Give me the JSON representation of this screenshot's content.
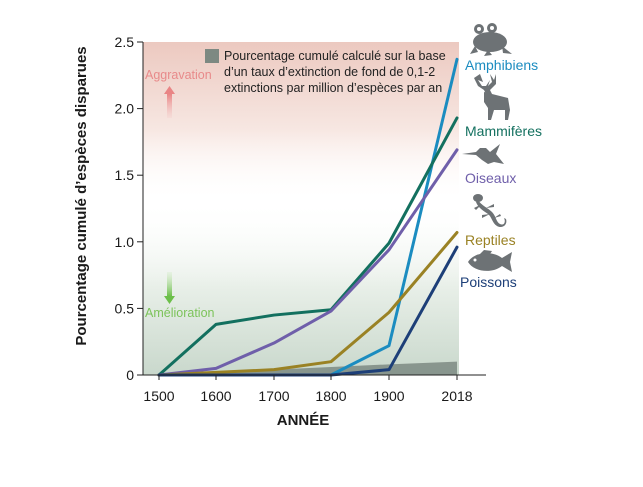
{
  "chart_data": {
    "type": "line",
    "title": "",
    "xlabel": "ANNÉE",
    "ylabel": "Pourcentage cumulé d’espèces disparues",
    "x": [
      1500,
      1600,
      1700,
      1800,
      1900,
      2018
    ],
    "x_tick_labels": [
      "1500",
      "1600",
      "1700",
      "1800",
      "1900",
      "2018"
    ],
    "ylim": [
      0,
      2.5
    ],
    "y_ticks": [
      0,
      0.5,
      1.0,
      1.5,
      2.0,
      2.5
    ],
    "y_tick_labels": [
      "0",
      "0.5",
      "1.0",
      "1.5",
      "2.0",
      "2.5"
    ],
    "series": [
      {
        "name": "Amphibiens",
        "color": "#1b8cc0",
        "icon": "frog-icon",
        "values": [
          0,
          0,
          0,
          0,
          0.22,
          2.37
        ]
      },
      {
        "name": "Mammifères",
        "color": "#13705f",
        "icon": "deer-icon",
        "values": [
          0,
          0.38,
          0.45,
          0.49,
          0.99,
          1.93
        ]
      },
      {
        "name": "Oiseaux",
        "color": "#6f5faa",
        "icon": "hummingbird-icon",
        "values": [
          0,
          0.05,
          0.24,
          0.48,
          0.94,
          1.69
        ]
      },
      {
        "name": "Reptiles",
        "color": "#9a8224",
        "icon": "lizard-icon",
        "values": [
          0,
          0.02,
          0.04,
          0.1,
          0.47,
          1.07
        ]
      },
      {
        "name": "Poissons",
        "color": "#1d3f78",
        "icon": "fish-icon",
        "values": [
          0,
          0,
          0,
          0,
          0.04,
          0.96
        ]
      }
    ],
    "background_series": {
      "name": "Pourcentage cumulé calculé sur la base d’un taux d’extinction de fond de 0,1-2 extinctions par million d’espèces par an",
      "color": "#7d8982",
      "values": [
        0,
        0.02,
        0.04,
        0.06,
        0.08,
        0.1
      ]
    },
    "legend_lines": [
      "Pourcentage cumulé calculé sur la base",
      "d’un taux d’extinction de fond de 0,1-2",
      "extinctions par million d’espèces par an"
    ],
    "zone_labels": {
      "worse": {
        "text": "Aggravation",
        "color": "#e88a8a"
      },
      "better": {
        "text": "Amélioration",
        "color": "#7cc35a"
      }
    }
  }
}
